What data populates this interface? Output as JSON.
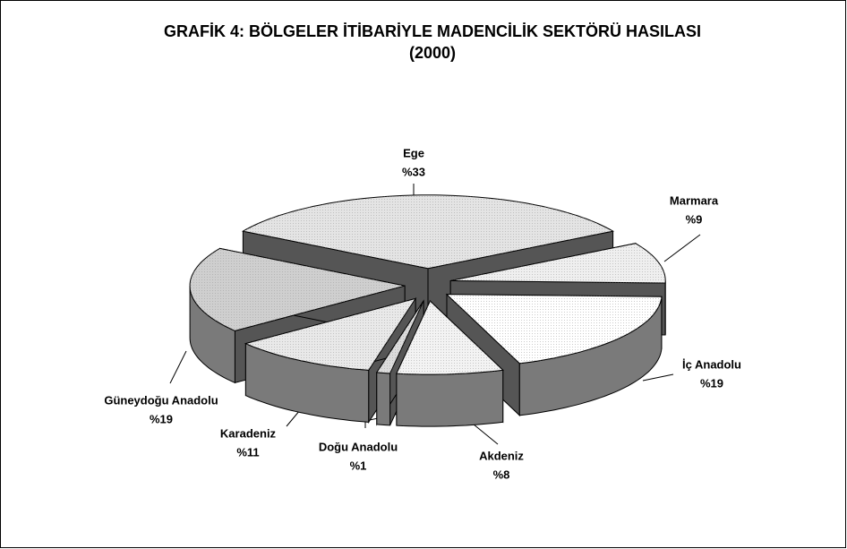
{
  "chart_data": {
    "type": "pie3d",
    "title": "GRAFİK 4: BÖLGELER İTİBARİYLE MADENCİLİK SEKTÖRÜ HASILASI",
    "subtitle": "(2000)",
    "categories": [
      "Ege",
      "Marmara",
      "İç Anadolu",
      "Akdeniz",
      "Doğu Anadolu",
      "Karadeniz",
      "Güneydoğu Anadolu"
    ],
    "values": [
      33,
      9,
      19,
      8,
      1,
      11,
      19
    ],
    "value_labels": [
      "%33",
      "%9",
      "%19",
      "%8",
      "%1",
      "%11",
      "%19"
    ],
    "colors": [
      "#e4e4e4",
      "#efefef",
      "#ffffff",
      "#f3f3f3",
      "#dcdcdc",
      "#e9e9e9",
      "#cfcfcf"
    ]
  }
}
